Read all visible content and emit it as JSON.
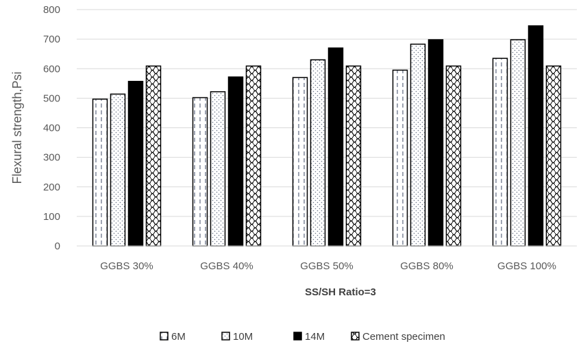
{
  "chart_data": {
    "type": "bar",
    "title": "",
    "xlabel": "SS/SH Ratio=3",
    "ylabel": "Flexural strength,Psi",
    "ylim": [
      0,
      800
    ],
    "yticks": [
      0,
      100,
      200,
      300,
      400,
      500,
      600,
      700,
      800
    ],
    "grid": true,
    "legend_position": "bottom",
    "categories": [
      "GGBS 30%",
      "GGBS 40%",
      "GGBS 50%",
      "GGBS 80%",
      "GGBS 100%"
    ],
    "series": [
      {
        "name": "6M",
        "pattern": "dashed-vertical",
        "color": "#000000",
        "values": [
          497,
          502,
          570,
          595,
          635
        ]
      },
      {
        "name": "10M",
        "pattern": "dotted-diagonal",
        "color": "#000000",
        "values": [
          514,
          522,
          630,
          683,
          698
        ]
      },
      {
        "name": "14M",
        "pattern": "solid",
        "color": "#000000",
        "values": [
          557,
          572,
          670,
          698,
          745
        ]
      },
      {
        "name": "Cement specimen",
        "pattern": "wave",
        "color": "#000000",
        "values": [
          609,
          609,
          609,
          609,
          609
        ]
      }
    ]
  }
}
